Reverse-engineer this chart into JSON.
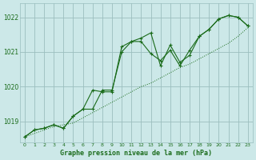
{
  "title": "Graphe pression niveau de la mer (hPa)",
  "background_color": "#cce8e8",
  "line_color": "#1a6b1a",
  "grid_color": "#9bbfbf",
  "xlim": [
    -0.5,
    23.5
  ],
  "ylim": [
    1018.4,
    1022.4
  ],
  "yticks": [
    1019,
    1020,
    1021,
    1022
  ],
  "xticks": [
    0,
    1,
    2,
    3,
    4,
    5,
    6,
    7,
    8,
    9,
    10,
    11,
    12,
    13,
    14,
    15,
    16,
    17,
    18,
    19,
    20,
    21,
    22,
    23
  ],
  "series_dotted": {
    "x": [
      0,
      1,
      2,
      3,
      4,
      5,
      6,
      7,
      8,
      9,
      10,
      11,
      12,
      13,
      14,
      15,
      16,
      17,
      18,
      19,
      20,
      21,
      22,
      23
    ],
    "y": [
      1018.55,
      1018.65,
      1018.75,
      1018.85,
      1018.9,
      1018.95,
      1019.1,
      1019.25,
      1019.4,
      1019.55,
      1019.7,
      1019.85,
      1020.0,
      1020.1,
      1020.25,
      1020.4,
      1020.55,
      1020.65,
      1020.8,
      1020.95,
      1021.1,
      1021.25,
      1021.45,
      1021.7
    ]
  },
  "series1": {
    "x": [
      0,
      1,
      2,
      3,
      4,
      5,
      6,
      7,
      8,
      9,
      10,
      11,
      12,
      13,
      14,
      15,
      16,
      17,
      18,
      19,
      20,
      21,
      22,
      23
    ],
    "y": [
      1018.55,
      1018.75,
      1018.8,
      1018.9,
      1018.8,
      1019.15,
      1019.35,
      1019.9,
      1019.85,
      1019.85,
      1021.15,
      1021.3,
      1021.3,
      1020.95,
      1020.75,
      1021.05,
      1020.6,
      1021.05,
      1021.45,
      1021.65,
      1021.95,
      1022.05,
      1022.0,
      1021.75
    ]
  },
  "series2": {
    "x": [
      0,
      1,
      2,
      3,
      4,
      5,
      6,
      7,
      8,
      9,
      10,
      11,
      12,
      13,
      14,
      15,
      16,
      17,
      18,
      19,
      20,
      21,
      22,
      23
    ],
    "y": [
      1018.55,
      1018.75,
      1018.8,
      1018.9,
      1018.8,
      1019.15,
      1019.35,
      1019.35,
      1019.9,
      1019.9,
      1021.0,
      1021.3,
      1021.4,
      1021.55,
      1020.6,
      1021.2,
      1020.7,
      1020.9,
      1021.45,
      1021.65,
      1021.95,
      1022.05,
      1022.0,
      1021.75
    ]
  }
}
